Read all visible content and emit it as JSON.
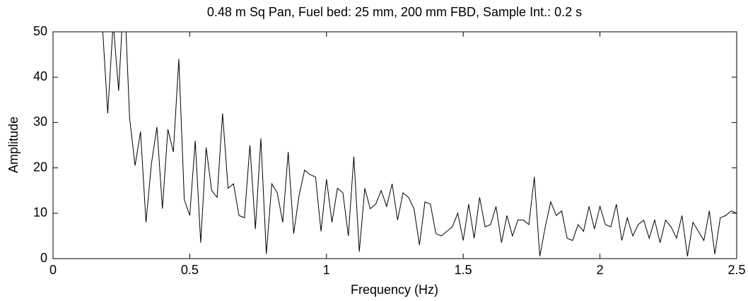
{
  "chart_data": {
    "type": "line",
    "title": "0.48 m Sq Pan, Fuel bed: 25 mm, 200 mm FBD, Sample Int.: 0.2 s",
    "x_label": "Frequency (Hz)",
    "y_label": "Amplitude",
    "xlim": [
      0,
      2.5
    ],
    "ylim": [
      0,
      50
    ],
    "xticks": [
      0,
      0.5,
      1,
      1.5,
      2,
      2.5
    ],
    "yticks": [
      0,
      10,
      20,
      30,
      40,
      50
    ],
    "grid": false,
    "x": [
      0.14,
      0.16,
      0.18,
      0.2,
      0.22,
      0.24,
      0.26,
      0.28,
      0.3,
      0.32,
      0.34,
      0.36,
      0.38,
      0.4,
      0.42,
      0.44,
      0.46,
      0.48,
      0.5,
      0.52,
      0.54,
      0.56,
      0.58,
      0.6,
      0.62,
      0.64,
      0.66,
      0.68,
      0.7,
      0.72,
      0.74,
      0.76,
      0.78,
      0.8,
      0.82,
      0.84,
      0.86,
      0.88,
      0.9,
      0.92,
      0.94,
      0.96,
      0.98,
      1.0,
      1.02,
      1.04,
      1.06,
      1.08,
      1.1,
      1.12,
      1.14,
      1.16,
      1.18,
      1.2,
      1.22,
      1.24,
      1.26,
      1.28,
      1.3,
      1.32,
      1.34,
      1.36,
      1.38,
      1.4,
      1.42,
      1.44,
      1.46,
      1.48,
      1.5,
      1.52,
      1.54,
      1.56,
      1.58,
      1.6,
      1.62,
      1.64,
      1.66,
      1.68,
      1.7,
      1.72,
      1.74,
      1.76,
      1.78,
      1.8,
      1.82,
      1.84,
      1.86,
      1.88,
      1.9,
      1.92,
      1.94,
      1.96,
      1.98,
      2.0,
      2.02,
      2.04,
      2.06,
      2.08,
      2.1,
      2.12,
      2.14,
      2.16,
      2.18,
      2.2,
      2.22,
      2.24,
      2.26,
      2.28,
      2.3,
      2.32,
      2.34,
      2.36,
      2.38,
      2.4,
      2.42,
      2.44,
      2.46,
      2.48,
      2.5
    ],
    "series": [
      {
        "color": "#000000",
        "values": [
          60,
          55,
          52,
          32,
          52,
          37,
          60,
          31,
          20.5,
          28,
          8,
          21,
          29,
          11,
          28.5,
          23.5,
          44,
          13,
          9.5,
          26,
          3.5,
          24.5,
          15,
          13.5,
          32,
          15.5,
          16.5,
          9.5,
          9,
          25,
          6.5,
          26.5,
          1,
          16.5,
          14.5,
          8,
          23.5,
          5.5,
          14,
          19.5,
          18.5,
          18,
          6,
          17.5,
          8,
          15.5,
          14.5,
          5,
          22.5,
          1.5,
          15.5,
          11,
          12,
          15,
          11.5,
          16.5,
          8.5,
          14.5,
          13.5,
          11,
          3,
          12.5,
          12,
          5.5,
          5,
          6,
          7,
          10,
          4,
          12,
          4.5,
          13.5,
          7,
          7.5,
          11.5,
          3.5,
          9.5,
          5,
          8.5,
          8.5,
          7.5,
          18,
          0.5,
          7,
          12.5,
          9.5,
          10.5,
          4.5,
          4,
          7.5,
          6,
          11.5,
          6.5,
          11.5,
          7.5,
          7,
          12,
          4,
          9,
          5,
          7.5,
          8.5,
          4.5,
          8.5,
          3.5,
          8.5,
          7,
          4.5,
          9.5,
          0.5,
          8,
          6,
          4,
          10.5,
          1,
          9,
          9.5,
          10.5,
          10
        ]
      }
    ]
  }
}
